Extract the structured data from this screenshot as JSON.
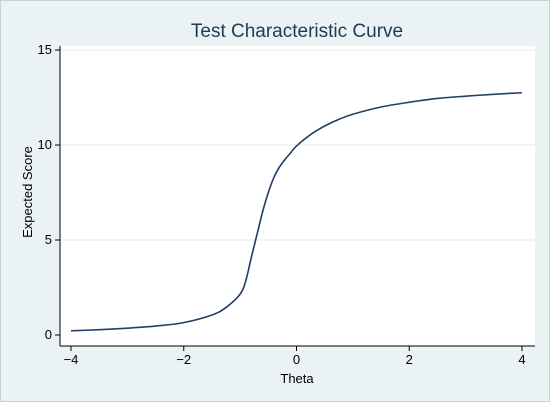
{
  "chart_data": {
    "type": "line",
    "title": "Test Characteristic Curve",
    "xlabel": "Theta",
    "ylabel": "Expected Score",
    "xlim": [
      -4,
      4
    ],
    "ylim": [
      0,
      15
    ],
    "xticks": [
      -4,
      -2,
      0,
      2,
      4
    ],
    "xtick_labels": [
      "−4",
      "−2",
      "0",
      "2",
      "4"
    ],
    "yticks": [
      0,
      5,
      10,
      15
    ],
    "ytick_labels": [
      "0",
      "5",
      "10",
      "15"
    ],
    "grid": "horizontal",
    "legend": false,
    "colors": {
      "plot_background": "#ffffff",
      "outer_background": "#eaf2f3",
      "line": "#1f3f66",
      "title": "#1e3b5a",
      "grid": "#e6eaee"
    },
    "series": [
      {
        "x": [
          -4.0,
          -3.5,
          -3.0,
          -2.5,
          -2.0,
          -1.5,
          -1.25,
          -1.0,
          -0.9,
          -0.8,
          -0.7,
          -0.6,
          -0.5,
          -0.4,
          -0.3,
          -0.2,
          -0.1,
          0.0,
          0.25,
          0.5,
          0.75,
          1.0,
          1.5,
          2.0,
          2.5,
          3.0,
          3.5,
          4.0
        ],
        "y": [
          0.22,
          0.28,
          0.36,
          0.47,
          0.65,
          1.05,
          1.45,
          2.15,
          2.85,
          4.1,
          5.3,
          6.5,
          7.5,
          8.3,
          8.85,
          9.25,
          9.6,
          9.95,
          10.55,
          11.0,
          11.35,
          11.62,
          12.0,
          12.25,
          12.45,
          12.57,
          12.67,
          12.75
        ]
      }
    ]
  }
}
